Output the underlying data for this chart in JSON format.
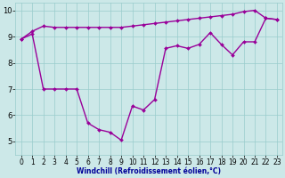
{
  "line1_x": [
    0,
    1,
    2,
    3,
    4,
    5,
    6,
    7,
    8,
    9,
    10,
    11,
    12,
    13,
    14,
    15,
    16,
    17,
    18,
    19,
    20,
    21,
    22,
    23
  ],
  "line1_y": [
    8.9,
    9.2,
    9.4,
    9.35,
    9.35,
    9.35,
    9.35,
    9.35,
    9.35,
    9.35,
    9.4,
    9.45,
    9.5,
    9.55,
    9.6,
    9.65,
    9.7,
    9.75,
    9.8,
    9.85,
    9.95,
    10.0,
    9.7,
    9.65
  ],
  "line2_x": [
    0,
    1,
    2,
    3,
    4,
    5,
    6,
    7,
    8,
    9,
    10,
    11,
    12,
    13,
    14,
    15,
    16,
    17,
    18,
    19,
    20,
    21,
    22,
    23
  ],
  "line2_y": [
    8.9,
    9.1,
    7.0,
    7.0,
    7.0,
    7.0,
    5.7,
    5.45,
    5.35,
    5.05,
    6.35,
    6.2,
    6.6,
    8.55,
    8.65,
    8.55,
    8.7,
    9.15,
    8.7,
    8.3,
    8.8,
    8.8,
    9.7,
    9.65
  ],
  "line_color": "#990099",
  "bg_color": "#cce8e8",
  "grid_color": "#99cccc",
  "xlabel": "Windchill (Refroidissement éolien,°C)",
  "xlabel_color": "#000099",
  "xlim_min": -0.5,
  "xlim_max": 23.5,
  "ylim_min": 4.5,
  "ylim_max": 10.3,
  "yticks": [
    5,
    6,
    7,
    8,
    9,
    10
  ],
  "xticks": [
    0,
    1,
    2,
    3,
    4,
    5,
    6,
    7,
    8,
    9,
    10,
    11,
    12,
    13,
    14,
    15,
    16,
    17,
    18,
    19,
    20,
    21,
    22,
    23
  ],
  "xtick_labels": [
    "0",
    "1",
    "2",
    "3",
    "4",
    "5",
    "6",
    "7",
    "8",
    "9",
    "10",
    "11",
    "12",
    "13",
    "14",
    "15",
    "16",
    "17",
    "18",
    "19",
    "20",
    "21",
    "22",
    "23"
  ],
  "marker": "D",
  "markersize": 2.0,
  "linewidth": 1.0,
  "tick_fontsize": 5.5,
  "xlabel_fontsize": 5.5,
  "ytick_fontsize": 6.0
}
